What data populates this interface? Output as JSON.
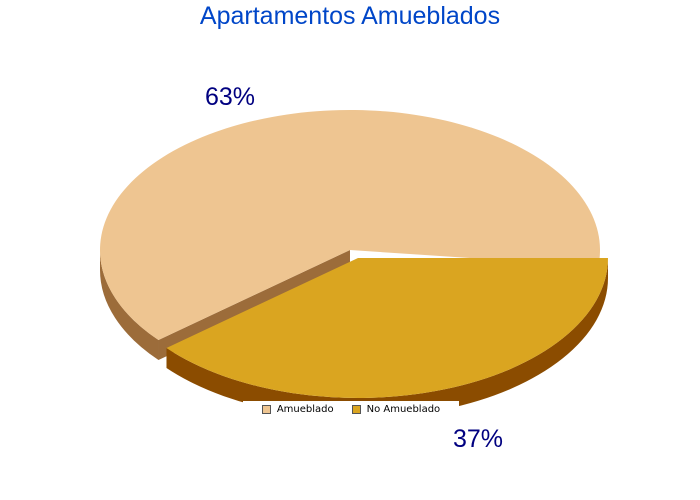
{
  "chart_data": {
    "type": "pie",
    "title": "Apartamentos Amueblados",
    "slices": [
      {
        "label": "Amueblado",
        "value": 63,
        "value_label": "63%",
        "color": "#eec591",
        "side_color": "#9c6c3a"
      },
      {
        "label": "No Amueblado",
        "value": 37,
        "value_label": "37%",
        "color": "#daa520",
        "side_color": "#8b4c00"
      }
    ],
    "style": "3d",
    "exploded_slice": "No Amueblado",
    "legend": {
      "placement": "bottom"
    }
  }
}
